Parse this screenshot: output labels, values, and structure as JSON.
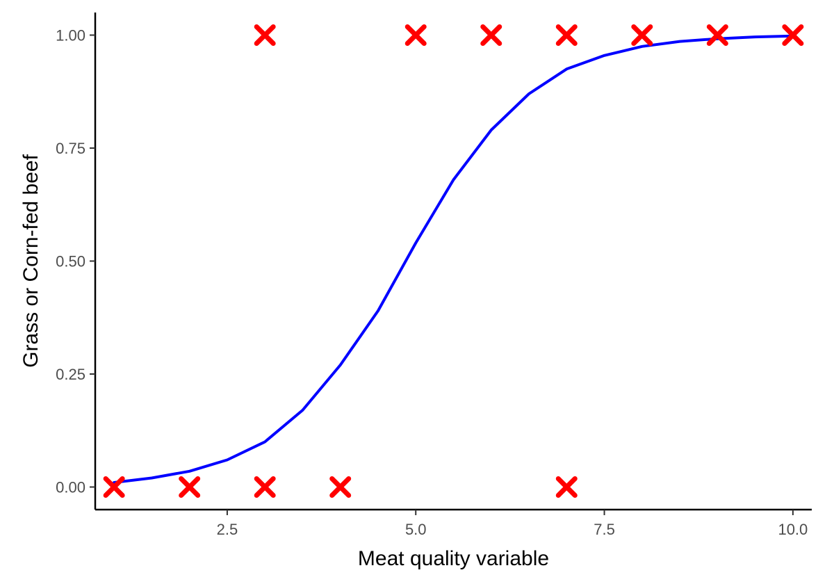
{
  "chart_data": {
    "type": "scatter",
    "title": "",
    "xlabel": "Meat quality variable",
    "ylabel": "Grass or Corn-fed beef",
    "xlim": [
      0.75,
      10.25
    ],
    "ylim": [
      -0.05,
      1.05
    ],
    "x_ticks": [
      2.5,
      5.0,
      7.5,
      10.0
    ],
    "x_tick_labels": [
      "2.5",
      "5.0",
      "7.5",
      "10.0"
    ],
    "y_ticks": [
      0.0,
      0.25,
      0.5,
      0.75,
      1.0
    ],
    "y_tick_labels": [
      "0.00",
      "0.25",
      "0.50",
      "0.75",
      "1.00"
    ],
    "grid": false,
    "legend": "none",
    "points": {
      "marker": "x",
      "color": "#ff0000",
      "x": [
        1,
        2,
        3,
        4,
        7,
        3,
        5,
        6,
        7,
        8,
        9,
        10
      ],
      "y": [
        0,
        0,
        0,
        0,
        0,
        1,
        1,
        1,
        1,
        1,
        1,
        1
      ]
    },
    "fit_curve": {
      "type": "line",
      "model": "logistic",
      "color": "#0000ff",
      "x": [
        1,
        1.5,
        2,
        2.5,
        3,
        3.5,
        4,
        4.5,
        5,
        5.5,
        6,
        6.5,
        7,
        7.5,
        8,
        8.5,
        9,
        9.5,
        10
      ],
      "y": [
        0.01,
        0.02,
        0.035,
        0.06,
        0.1,
        0.17,
        0.27,
        0.39,
        0.54,
        0.68,
        0.79,
        0.87,
        0.925,
        0.955,
        0.975,
        0.986,
        0.992,
        0.996,
        0.998
      ]
    }
  }
}
